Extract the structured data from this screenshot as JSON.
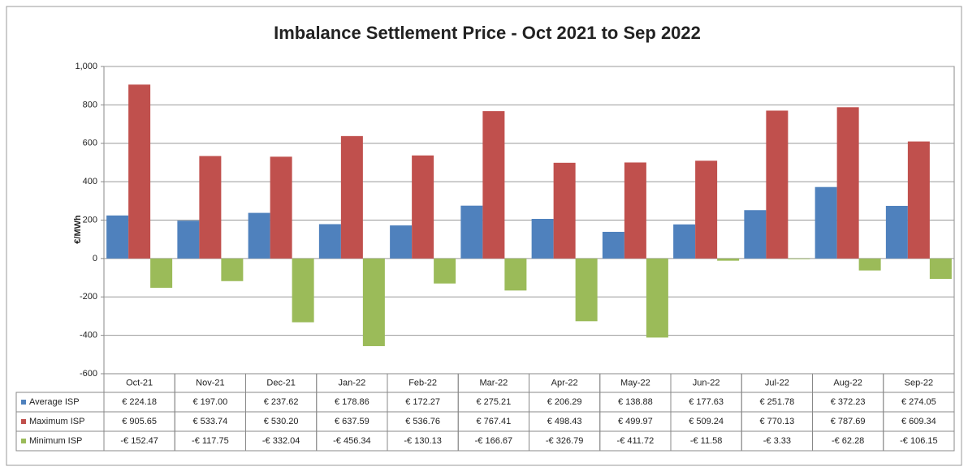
{
  "chart_data": {
    "type": "bar",
    "title": "Imbalance Settlement Price - Oct 2021 to Sep 2022",
    "y_label": "€/MWh",
    "categories": [
      "Oct-21",
      "Nov-21",
      "Dec-21",
      "Jan-22",
      "Feb-22",
      "Mar-22",
      "Apr-22",
      "May-22",
      "Jun-22",
      "Jul-22",
      "Aug-22",
      "Sep-22"
    ],
    "series": [
      {
        "name": "Average ISP",
        "color": "#4f81bd",
        "values": [
          224.18,
          197.0,
          237.62,
          178.86,
          172.27,
          275.21,
          206.29,
          138.88,
          177.63,
          251.78,
          372.23,
          274.05
        ],
        "value_labels": [
          "€ 224.18",
          "€ 197.00",
          "€ 237.62",
          "€ 178.86",
          "€ 172.27",
          "€ 275.21",
          "€ 206.29",
          "€ 138.88",
          "€ 177.63",
          "€ 251.78",
          "€ 372.23",
          "€ 274.05"
        ]
      },
      {
        "name": "Maximum ISP",
        "color": "#c0504d",
        "values": [
          905.65,
          533.74,
          530.2,
          637.59,
          536.76,
          767.41,
          498.43,
          499.97,
          509.24,
          770.13,
          787.69,
          609.34
        ],
        "value_labels": [
          "€ 905.65",
          "€ 533.74",
          "€ 530.20",
          "€ 637.59",
          "€ 536.76",
          "€ 767.41",
          "€ 498.43",
          "€ 499.97",
          "€ 509.24",
          "€ 770.13",
          "€ 787.69",
          "€ 609.34"
        ]
      },
      {
        "name": "Minimum ISP",
        "color": "#9bbb59",
        "values": [
          -152.47,
          -117.75,
          -332.04,
          -456.34,
          -130.13,
          -166.67,
          -326.79,
          -411.72,
          -11.58,
          -3.33,
          -62.28,
          -106.15
        ],
        "value_labels": [
          "-€ 152.47",
          "-€ 117.75",
          "-€ 332.04",
          "-€ 456.34",
          "-€ 130.13",
          "-€ 166.67",
          "-€ 326.79",
          "-€ 411.72",
          "-€ 11.58",
          "-€ 3.33",
          "-€ 62.28",
          "-€ 106.15"
        ]
      }
    ],
    "ylim": [
      -600,
      1000
    ],
    "yticks": [
      -600,
      -400,
      -200,
      0,
      200,
      400,
      600,
      800,
      {
        "value": 1000,
        "label": "1,000"
      }
    ],
    "grid": true
  }
}
